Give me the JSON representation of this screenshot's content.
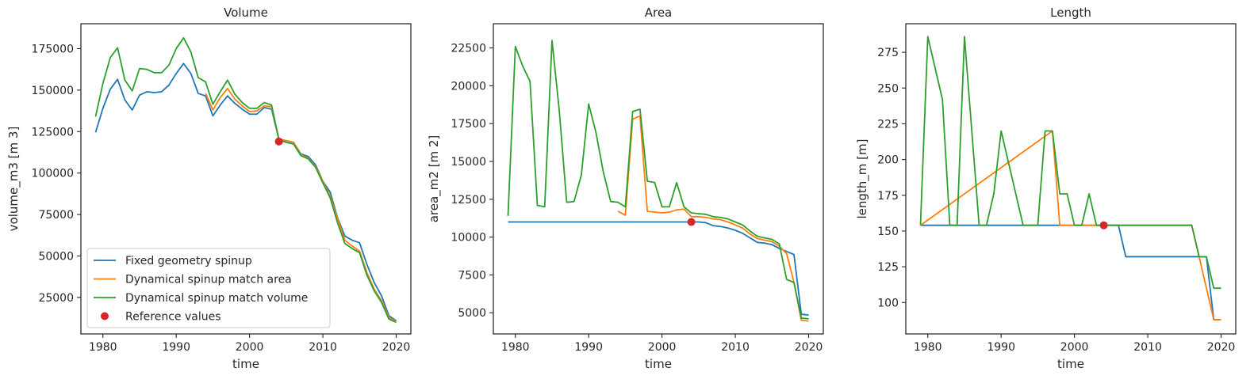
{
  "colors": {
    "fixed": "#1f77b4",
    "area": "#ff7f0e",
    "volume": "#2ca02c",
    "reference": "#d62728"
  },
  "legend": {
    "placement": "lower-left",
    "entries": [
      {
        "name": "Fixed geometry spinup",
        "series": "fixed",
        "kind": "line"
      },
      {
        "name": "Dynamical spinup match area",
        "series": "area",
        "kind": "line"
      },
      {
        "name": "Dynamical spinup match volume",
        "series": "volume",
        "kind": "line"
      },
      {
        "name": "Reference values",
        "series": "reference",
        "kind": "scatter"
      }
    ]
  },
  "chart_data": [
    {
      "type": "line",
      "title": "Volume",
      "xlabel": "time",
      "ylabel": "volume_m3 [m 3]",
      "xlim": [
        1977,
        2022
      ],
      "ylim": [
        3000,
        190000
      ],
      "xticks": [
        1980,
        1990,
        2000,
        2010,
        2020
      ],
      "yticks": [
        25000,
        50000,
        75000,
        100000,
        125000,
        150000,
        175000
      ],
      "grid": false,
      "series": [
        {
          "name": "Fixed geometry spinup",
          "color_key": "fixed",
          "x": [
            1979,
            1980,
            1981,
            1982,
            1983,
            1984,
            1985,
            1986,
            1987,
            1988,
            1989,
            1990,
            1991,
            1992,
            1993,
            1994,
            1995,
            1996,
            1997,
            1998,
            1999,
            2000,
            2001,
            2002,
            2003,
            2004,
            2005,
            2006,
            2007,
            2008,
            2009,
            2010,
            2011,
            2012,
            2013,
            2014,
            2015,
            2016,
            2017,
            2018,
            2019,
            2020
          ],
          "y": [
            124500,
            139000,
            150500,
            156500,
            144000,
            138000,
            147000,
            149000,
            148500,
            149000,
            153000,
            160000,
            166000,
            160000,
            148000,
            146500,
            134500,
            141000,
            146500,
            142000,
            138500,
            135500,
            135500,
            139500,
            138500,
            120500,
            119500,
            118500,
            111500,
            110000,
            105000,
            95000,
            88500,
            73000,
            62000,
            59500,
            58000,
            45000,
            34000,
            26000,
            14000,
            11000
          ]
        },
        {
          "name": "Dynamical spinup match area",
          "color_key": "area",
          "x": [
            1994,
            1995,
            1996,
            1997,
            1998,
            1999,
            2000,
            2001,
            2002,
            2003,
            2004,
            2005,
            2006,
            2007,
            2008,
            2009,
            2010,
            2011,
            2012,
            2013,
            2014,
            2015,
            2016,
            2017,
            2018,
            2019,
            2020
          ],
          "y": [
            148000,
            138000,
            145500,
            151000,
            144500,
            140500,
            137000,
            137500,
            140500,
            140000,
            120500,
            119500,
            118500,
            111000,
            109000,
            104000,
            95000,
            86000,
            72500,
            59500,
            56000,
            53000,
            40000,
            30000,
            23000,
            13000,
            10500
          ]
        },
        {
          "name": "Dynamical spinup match volume",
          "color_key": "volume",
          "x": [
            1979,
            1980,
            1981,
            1982,
            1983,
            1984,
            1985,
            1986,
            1987,
            1988,
            1989,
            1990,
            1991,
            1992,
            1993,
            1994,
            1995,
            1996,
            1997,
            1998,
            1999,
            2000,
            2001,
            2002,
            2003,
            2004,
            2005,
            2006,
            2007,
            2008,
            2009,
            2010,
            2011,
            2012,
            2013,
            2014,
            2015,
            2016,
            2017,
            2018,
            2019,
            2020
          ],
          "y": [
            134000,
            154000,
            169500,
            175500,
            156000,
            149500,
            163000,
            162500,
            160500,
            160500,
            165000,
            175000,
            181500,
            173000,
            157500,
            155000,
            141500,
            149000,
            156000,
            147500,
            142500,
            139000,
            139000,
            142500,
            141000,
            120000,
            118500,
            117500,
            110500,
            108500,
            103500,
            94000,
            85000,
            70000,
            57500,
            54500,
            52000,
            38500,
            29000,
            22000,
            12000,
            10000
          ]
        }
      ],
      "reference_point": {
        "x": 2004,
        "y": 119000
      }
    },
    {
      "type": "line",
      "title": "Area",
      "xlabel": "time",
      "ylabel": "area_m2 [m 2]",
      "xlim": [
        1977,
        2022
      ],
      "ylim": [
        3600,
        24100
      ],
      "xticks": [
        1980,
        1990,
        2000,
        2010,
        2020
      ],
      "yticks": [
        5000,
        7500,
        10000,
        12500,
        15000,
        17500,
        20000,
        22500
      ],
      "grid": false,
      "series": [
        {
          "name": "Fixed geometry spinup",
          "color_key": "fixed",
          "x": [
            1979,
            2004,
            2005,
            2006,
            2007,
            2008,
            2009,
            2010,
            2011,
            2012,
            2013,
            2014,
            2015,
            2016,
            2017,
            2018,
            2019,
            2020
          ],
          "y": [
            11000,
            11000,
            11000,
            10950,
            10750,
            10700,
            10600,
            10450,
            10250,
            9950,
            9650,
            9600,
            9500,
            9250,
            9050,
            8850,
            4900,
            4850
          ]
        },
        {
          "name": "Dynamical spinup match area",
          "color_key": "area",
          "x": [
            1994,
            1995,
            1996,
            1997,
            1998,
            1999,
            2000,
            2001,
            2002,
            2003,
            2004,
            2005,
            2006,
            2007,
            2008,
            2009,
            2010,
            2011,
            2012,
            2013,
            2014,
            2015,
            2016,
            2017,
            2018,
            2019,
            2020
          ],
          "y": [
            11700,
            11450,
            17800,
            18000,
            11700,
            11650,
            11600,
            11650,
            11800,
            11850,
            11350,
            11350,
            11300,
            11200,
            11150,
            11000,
            10800,
            10600,
            10200,
            9900,
            9800,
            9700,
            9400,
            8900,
            7000,
            4500,
            4450
          ]
        },
        {
          "name": "Dynamical spinup match volume",
          "color_key": "volume",
          "x": [
            1979,
            1980,
            1981,
            1982,
            1983,
            1984,
            1985,
            1986,
            1987,
            1988,
            1989,
            1990,
            1991,
            1992,
            1993,
            1994,
            1995,
            1996,
            1997,
            1998,
            1999,
            2000,
            2001,
            2002,
            2003,
            2004,
            2005,
            2006,
            2007,
            2008,
            2009,
            2010,
            2011,
            2012,
            2013,
            2014,
            2015,
            2016,
            2017,
            2018,
            2019,
            2020
          ],
          "y": [
            11400,
            22600,
            21300,
            20300,
            12100,
            12000,
            23000,
            18300,
            12300,
            12350,
            14100,
            18800,
            16900,
            14300,
            12350,
            12300,
            12000,
            18300,
            18450,
            13700,
            13600,
            12000,
            12000,
            13600,
            12000,
            11600,
            11550,
            11500,
            11350,
            11300,
            11200,
            11000,
            10800,
            10400,
            10050,
            9950,
            9850,
            9550,
            7200,
            7000,
            4650,
            4600
          ]
        }
      ],
      "reference_point": {
        "x": 2004,
        "y": 11000
      }
    },
    {
      "type": "line",
      "title": "Length",
      "xlabel": "time",
      "ylabel": "length_m [m]",
      "xlim": [
        1977,
        2022
      ],
      "ylim": [
        78,
        295
      ],
      "xticks": [
        1980,
        1990,
        2000,
        2010,
        2020
      ],
      "yticks": [
        100,
        125,
        150,
        175,
        200,
        225,
        250,
        275
      ],
      "grid": false,
      "series": [
        {
          "name": "Fixed geometry spinup",
          "color_key": "fixed",
          "x": [
            1979,
            2006,
            2007,
            2018,
            2019,
            2020
          ],
          "y": [
            154,
            154,
            132,
            132,
            88,
            88
          ]
        },
        {
          "name": "Dynamical spinup match area",
          "color_key": "area",
          "x": [
            1979,
            1997,
            1998,
            1999,
            2000,
            2016,
            2017,
            2018,
            2019,
            2020
          ],
          "y": [
            154,
            220,
            154,
            154,
            154,
            154,
            132,
            110,
            88,
            88
          ]
        },
        {
          "name": "Dynamical spinup match volume",
          "color_key": "volume",
          "x": [
            1979,
            1980,
            1981,
            1982,
            1983,
            1984,
            1985,
            1986,
            1987,
            1988,
            1989,
            1990,
            1991,
            1992,
            1993,
            1994,
            1995,
            1996,
            1997,
            1998,
            1999,
            2000,
            2001,
            2002,
            2003,
            2016,
            2017,
            2018,
            2019,
            2020
          ],
          "y": [
            154,
            286,
            264,
            242,
            154,
            154,
            286,
            220,
            154,
            154,
            176,
            220,
            198,
            176,
            154,
            154,
            154,
            220,
            220,
            176,
            176,
            154,
            154,
            176,
            154,
            154,
            132,
            132,
            110,
            110
          ]
        }
      ],
      "reference_point": {
        "x": 2004,
        "y": 154
      }
    }
  ]
}
